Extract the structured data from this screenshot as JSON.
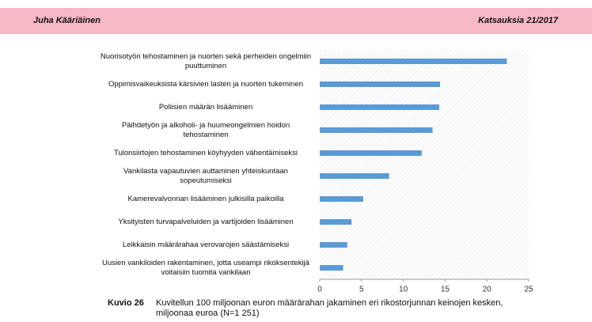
{
  "header": {
    "left": "Juha Kääriäinen",
    "right": "Katsauksia 21/2017"
  },
  "chart_data": {
    "type": "bar",
    "horizontal": true,
    "color": "#5b9bd5",
    "categories": [
      "Nuorisotyön tehostaminen ja nuorten sekä perheiden ongelmiin puuttuminen",
      "Oppimisvaikeuksista kärsivien lasten ja nuorten tukeminen",
      "Poliisien määrän lisääminen",
      "Päihdetyön ja alkoholi- ja huumeongelmien hoidon tehostaminen",
      "Tulonsiirtojen tehostaminen köyhyyden vähentämiseksi",
      "Vankilasta vapautuvien auttaminen yhteiskuntaan sopeutumiseksi",
      "Kamerevalvonnan lisääminen julkisilla paikoilla",
      "Yksityisten turvapalveluiden ja vartijoiden lisääminen",
      "Leikkaisin määrärahaa verovarojen säästämiseksi",
      "Uusien vankiloiden rakentaminen, jotta useampi rikoksentekijä voitaisiin tuomita vankilaan"
    ],
    "values": [
      22.4,
      14.4,
      14.3,
      13.5,
      12.2,
      8.3,
      5.2,
      3.8,
      3.3,
      2.8
    ],
    "xlim": [
      0,
      25
    ],
    "xticks": [
      0,
      5,
      10,
      15,
      20,
      25
    ]
  },
  "caption": {
    "label": "Kuvio 26",
    "text": "Kuvitellun 100 miljoonan euron määrärahan jakaminen eri rikostorjunnan keinojen kesken, miljoonaa euroa (N=1 251)"
  }
}
